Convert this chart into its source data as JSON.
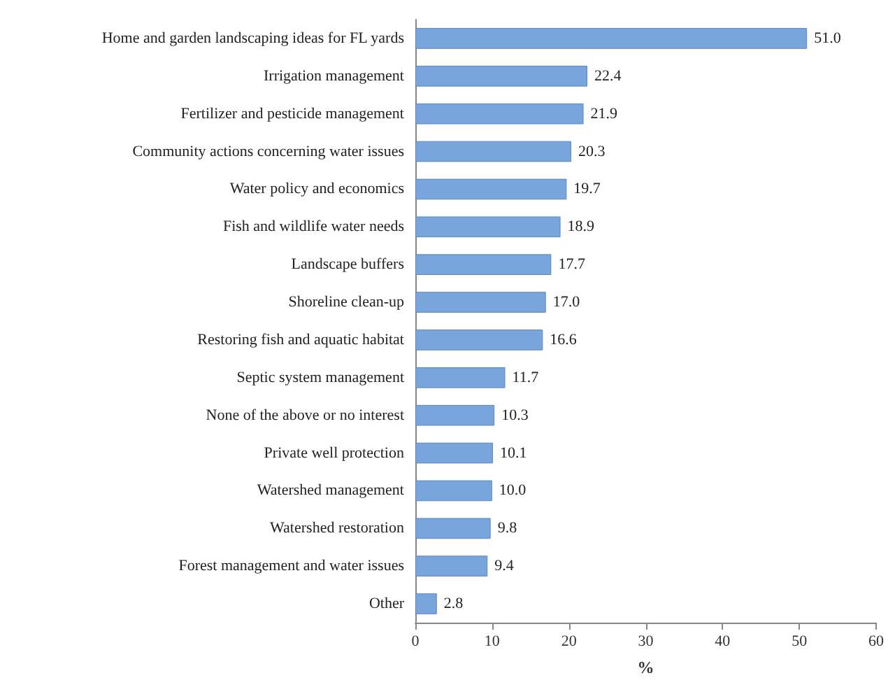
{
  "chart_data": {
    "type": "bar",
    "orientation": "horizontal",
    "categories": [
      "Home and garden landscaping ideas for FL yards",
      "Irrigation management",
      "Fertilizer and pesticide management",
      "Community actions concerning water issues",
      "Water policy and economics",
      "Fish and wildlife water needs",
      "Landscape buffers",
      "Shoreline clean-up",
      "Restoring fish and aquatic habitat",
      "Septic system management",
      "None of the above or no interest",
      "Private well protection",
      "Watershed management",
      "Watershed restoration",
      "Forest management and water issues",
      "Other"
    ],
    "values": [
      51.0,
      22.4,
      21.9,
      20.3,
      19.7,
      18.9,
      17.7,
      17.0,
      16.6,
      11.7,
      10.3,
      10.1,
      10.0,
      9.8,
      9.4,
      2.8
    ],
    "value_labels": [
      "51.0",
      "22.4",
      "21.9",
      "20.3",
      "19.7",
      "18.9",
      "17.7",
      "17.0",
      "16.6",
      "11.7",
      "10.3",
      "10.1",
      "10.0",
      "9.8",
      "9.4",
      "2.8"
    ],
    "color": "#78a5dc",
    "xlim": [
      0,
      60
    ],
    "xticks": [
      0,
      10,
      20,
      30,
      40,
      50,
      60
    ],
    "xlabel": "%",
    "grid": false
  }
}
